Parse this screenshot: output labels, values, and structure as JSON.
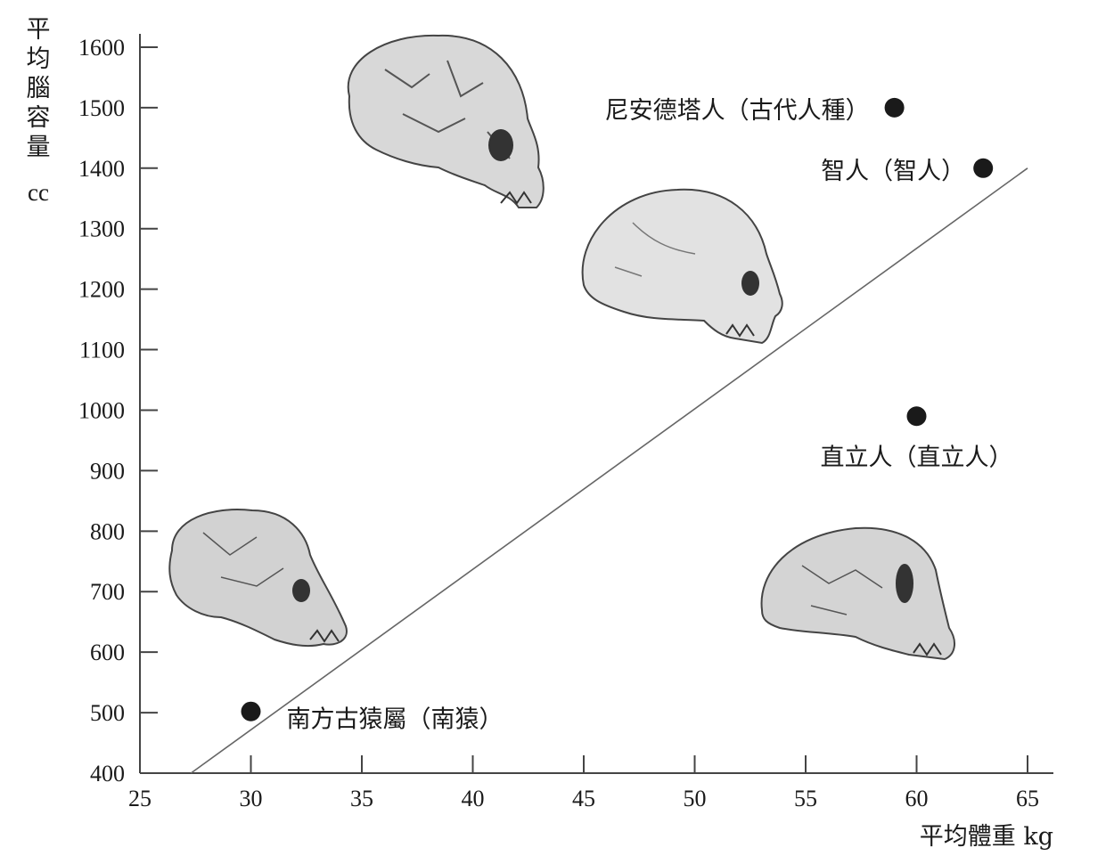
{
  "chart_data": {
    "type": "scatter",
    "title": "",
    "ylabel": "平均腦容量",
    "ylabel_unit": "cc",
    "xlabel": "平均體重 kg",
    "xlim": [
      25,
      66
    ],
    "ylim": [
      400,
      1600
    ],
    "xticks": [
      25,
      30,
      35,
      40,
      45,
      50,
      55,
      60,
      65
    ],
    "yticks": [
      400,
      500,
      600,
      700,
      800,
      900,
      1000,
      1100,
      1200,
      1300,
      1400,
      1500,
      1600
    ],
    "points": [
      {
        "label": "南方古猿屬（南猿）",
        "x": 30,
        "y": 502
      },
      {
        "label": "直立人（直立人）",
        "x": 60,
        "y": 990
      },
      {
        "label": "智人（智人）",
        "x": 63,
        "y": 1400
      },
      {
        "label": "尼安德塔人（古代人種）",
        "x": 59,
        "y": 1500
      }
    ],
    "trend_line": {
      "x": [
        27.3,
        65
      ],
      "y": [
        400,
        1400
      ]
    },
    "grid": false,
    "point_color": "#1a1a1a",
    "line_color": "#666666",
    "skull_color": "#cfcfcf"
  }
}
